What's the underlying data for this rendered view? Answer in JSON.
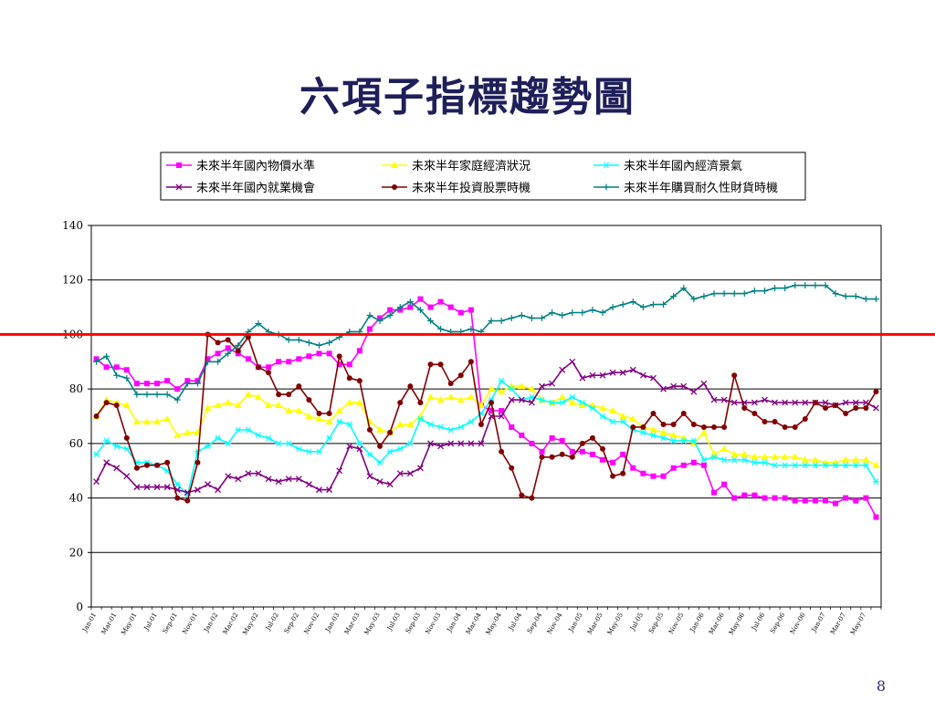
{
  "slide": {
    "title": "六項子指標趨勢圖",
    "page_number": "8"
  },
  "chart_data": {
    "type": "line",
    "title": "",
    "xlabel": "",
    "ylabel": "",
    "ylim": [
      0,
      140
    ],
    "yticks": [
      0,
      20,
      40,
      60,
      80,
      100,
      120,
      140
    ],
    "grid": true,
    "legend_position": "top",
    "reference_line": {
      "value": 100,
      "color": "#ff0000"
    },
    "x_tick_labels": [
      "Jan-01",
      "Mar-01",
      "May-01",
      "Jul-01",
      "Sep-01",
      "Nov-01",
      "Jan-02",
      "Mar-02",
      "May-02",
      "Jul-02",
      "Sep-02",
      "Nov-02",
      "Jan-03",
      "Mar-03",
      "May-03",
      "Jul-03",
      "Sep-03",
      "Nov-03",
      "Jan-04",
      "Mar-04",
      "May-04",
      "Jul-04",
      "Sep-04",
      "Nov-04",
      "Jan-05",
      "Mar-05",
      "May-05",
      "Jul-05",
      "Sep-05",
      "Nov-05",
      "Jan-06",
      "Mar-06",
      "May-06",
      "Jul-06",
      "Sep-06",
      "Nov-06",
      "Jan-07",
      "Mar-07",
      "May-07"
    ],
    "n_points": 78,
    "series": [
      {
        "name": "未來半年國內物價水準",
        "color": "#ff00ff",
        "marker": "square",
        "values": [
          91,
          88,
          88,
          87,
          82,
          82,
          82,
          83,
          80,
          83,
          83,
          91,
          93,
          95,
          93,
          91,
          88,
          88,
          90,
          90,
          91,
          92,
          93,
          93,
          89,
          89,
          94,
          102,
          106,
          109,
          109,
          110,
          113,
          110,
          112,
          110,
          108,
          109,
          74,
          72,
          72,
          66,
          63,
          60,
          57,
          62,
          61,
          57,
          57,
          56,
          54,
          53,
          56,
          51,
          49,
          48,
          48,
          51,
          52,
          53,
          52,
          42,
          45,
          40,
          41,
          41,
          40,
          40,
          40,
          39,
          39,
          39,
          39,
          38,
          40,
          39,
          40,
          33
        ]
      },
      {
        "name": "未來半年家庭經濟狀況",
        "color": "#ffff00",
        "marker": "triangle",
        "values": [
          70,
          76,
          75,
          74,
          68,
          68,
          68,
          69,
          63,
          64,
          64,
          73,
          74,
          75,
          74,
          78,
          77,
          74,
          74,
          72,
          72,
          70,
          69,
          68,
          72,
          75,
          75,
          68,
          65,
          64,
          67,
          67,
          70,
          77,
          76,
          77,
          76,
          77,
          74,
          80,
          79,
          81,
          81,
          80,
          76,
          75,
          77,
          75,
          74,
          74,
          73,
          72,
          70,
          69,
          66,
          65,
          64,
          63,
          62,
          60,
          64,
          56,
          58,
          56,
          56,
          55,
          55,
          55,
          55,
          55,
          54,
          54,
          53,
          53,
          54,
          54,
          54,
          52
        ]
      },
      {
        "name": "未來半年國內經濟景氣",
        "color": "#00ffff",
        "marker": "asterisk",
        "values": [
          56,
          61,
          59,
          58,
          53,
          53,
          52,
          50,
          45,
          41,
          57,
          59,
          62,
          60,
          65,
          65,
          63,
          62,
          60,
          60,
          58,
          57,
          57,
          62,
          68,
          67,
          60,
          56,
          53,
          57,
          58,
          60,
          69,
          67,
          66,
          65,
          66,
          68,
          71,
          76,
          83,
          80,
          76,
          77,
          76,
          75,
          75,
          77,
          75,
          73,
          70,
          68,
          68,
          65,
          64,
          63,
          62,
          61,
          61,
          61,
          54,
          55,
          54,
          54,
          54,
          53,
          53,
          52,
          52,
          52,
          52,
          52,
          52,
          52,
          52,
          52,
          52,
          46
        ]
      },
      {
        "name": "未來半年國內就業機會",
        "color": "#800080",
        "marker": "x",
        "values": [
          46,
          53,
          51,
          48,
          44,
          44,
          44,
          44,
          43,
          42,
          43,
          45,
          43,
          48,
          47,
          49,
          49,
          47,
          46,
          47,
          47,
          45,
          43,
          43,
          50,
          59,
          58,
          48,
          46,
          45,
          49,
          49,
          51,
          60,
          59,
          60,
          60,
          60,
          60,
          70,
          70,
          76,
          76,
          75,
          81,
          82,
          87,
          90,
          84,
          85,
          85,
          86,
          86,
          87,
          85,
          84,
          80,
          81,
          81,
          79,
          82,
          76,
          76,
          75,
          75,
          75,
          76,
          75,
          75,
          75,
          75,
          75,
          75,
          74,
          75,
          75,
          75,
          73
        ]
      },
      {
        "name": "未來半年投資股票時機",
        "color": "#800000",
        "marker": "circle",
        "values": [
          70,
          75,
          74,
          62,
          51,
          52,
          52,
          53,
          40,
          39,
          53,
          100,
          97,
          98,
          94,
          99,
          88,
          86,
          78,
          78,
          81,
          76,
          71,
          71,
          92,
          84,
          83,
          65,
          59,
          64,
          75,
          81,
          75,
          89,
          89,
          82,
          85,
          90,
          67,
          75,
          57,
          51,
          41,
          40,
          55,
          55,
          56,
          55,
          60,
          62,
          58,
          48,
          49,
          66,
          66,
          71,
          67,
          67,
          71,
          67,
          66,
          66,
          66,
          85,
          73,
          71,
          68,
          68,
          66,
          66,
          69,
          75,
          73,
          74,
          71,
          73,
          73,
          79
        ]
      },
      {
        "name": "未來半年購買耐久性財貨時機",
        "color": "#008080",
        "marker": "plus",
        "values": [
          90,
          92,
          85,
          84,
          78,
          78,
          78,
          78,
          76,
          82,
          82,
          90,
          90,
          93,
          96,
          101,
          104,
          101,
          100,
          98,
          98,
          97,
          96,
          97,
          99,
          101,
          101,
          107,
          105,
          107,
          110,
          112,
          109,
          105,
          102,
          101,
          101,
          102,
          101,
          105,
          105,
          106,
          107,
          106,
          106,
          108,
          107,
          108,
          108,
          109,
          108,
          110,
          111,
          112,
          110,
          111,
          111,
          114,
          117,
          113,
          114,
          115,
          115,
          115,
          115,
          116,
          116,
          117,
          117,
          118,
          118,
          118,
          118,
          115,
          114,
          114,
          113,
          113
        ]
      }
    ]
  }
}
